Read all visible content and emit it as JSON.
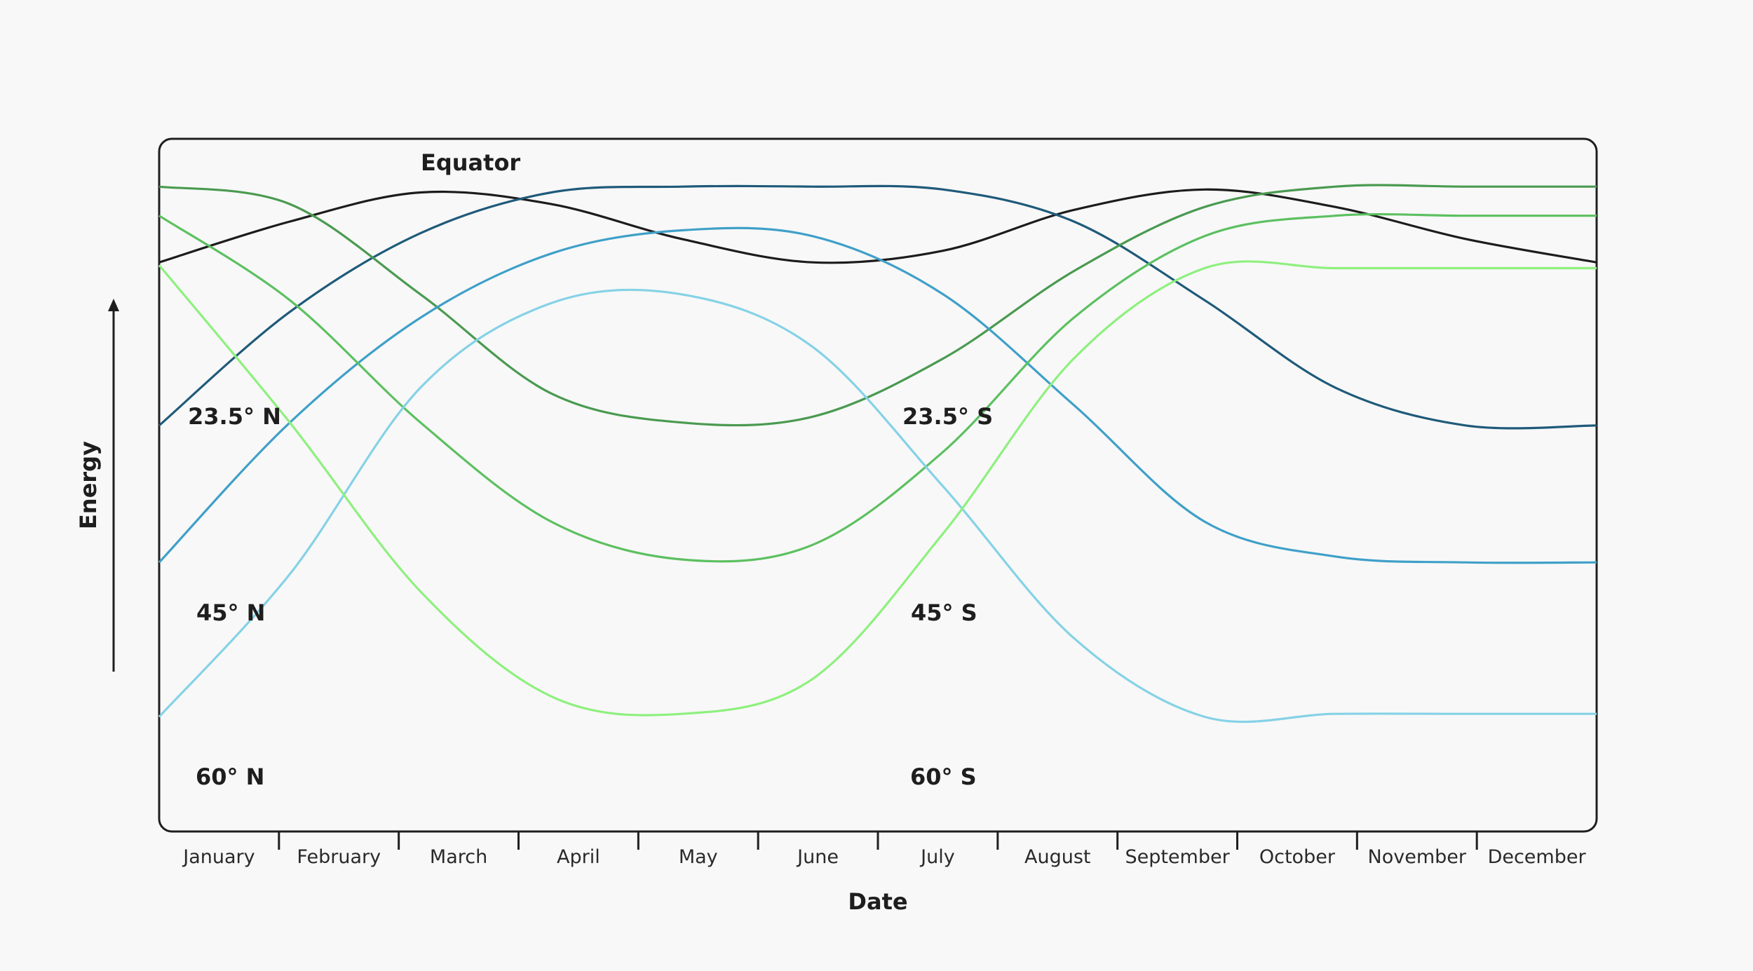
{
  "chart_data": {
    "type": "line",
    "xlabel": "Date",
    "ylabel": "Energy",
    "categories": [
      "January",
      "February",
      "March",
      "April",
      "May",
      "June",
      "July",
      "August",
      "September",
      "October",
      "November",
      "December"
    ],
    "grid": false,
    "series": [
      {
        "name": "Equator",
        "color": "#1c1c1c",
        "values": [
          0.865,
          0.935,
          0.985,
          0.965,
          0.905,
          0.865,
          0.885,
          0.955,
          0.99,
          0.96,
          0.905,
          0.865
        ]
      },
      {
        "name": "23.5° N",
        "color": "#1f5a7a",
        "values": [
          0.585,
          0.78,
          0.915,
          0.985,
          0.995,
          0.995,
          0.99,
          0.935,
          0.8,
          0.65,
          0.585,
          0.585
        ]
      },
      {
        "name": "23.5° S",
        "color": "#4a9a50",
        "values": [
          0.995,
          0.965,
          0.81,
          0.64,
          0.59,
          0.6,
          0.7,
          0.85,
          0.96,
          0.995,
          0.995,
          0.995
        ]
      },
      {
        "name": "45° N",
        "color": "#3fa0c8",
        "values": [
          0.35,
          0.59,
          0.77,
          0.88,
          0.92,
          0.91,
          0.81,
          0.62,
          0.42,
          0.36,
          0.35,
          0.35
        ]
      },
      {
        "name": "45° S",
        "color": "#5cc060",
        "values": [
          0.945,
          0.8,
          0.59,
          0.42,
          0.355,
          0.38,
          0.54,
          0.77,
          0.91,
          0.945,
          0.945,
          0.945
        ]
      },
      {
        "name": "60° N",
        "color": "#85d2e6",
        "values": [
          0.085,
          0.33,
          0.65,
          0.795,
          0.81,
          0.72,
          0.48,
          0.22,
          0.085,
          0.09,
          0.09,
          0.09
        ]
      },
      {
        "name": "60° S",
        "color": "#8ef07e",
        "values": [
          0.86,
          0.59,
          0.3,
          0.12,
          0.09,
          0.15,
          0.4,
          0.7,
          0.855,
          0.855,
          0.855,
          0.855
        ]
      }
    ],
    "series_labels": [
      {
        "name": "Equator",
        "text": "Equator"
      },
      {
        "name": "23.5° N",
        "text": "23.5° N"
      },
      {
        "name": "23.5° S",
        "text": "23.5° S"
      },
      {
        "name": "45° N",
        "text": "45° N"
      },
      {
        "name": "45° S",
        "text": "45° S"
      },
      {
        "name": "60° N",
        "text": "60° N"
      },
      {
        "name": "60° S",
        "text": "60° S"
      }
    ]
  }
}
